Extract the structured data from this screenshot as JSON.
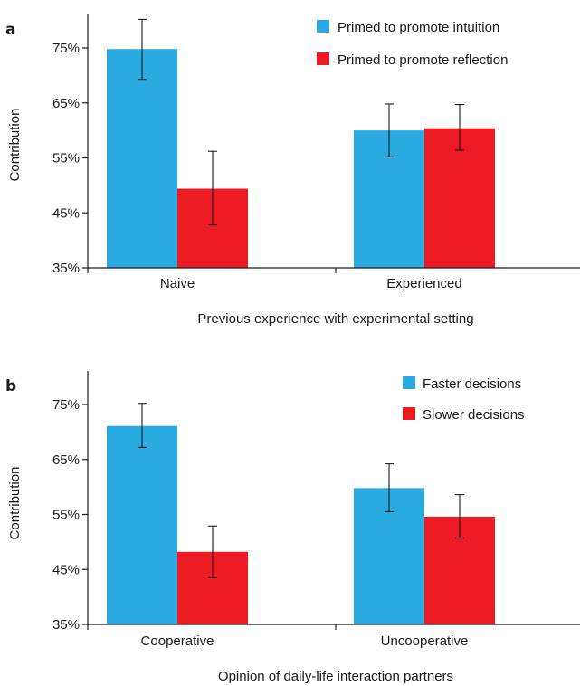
{
  "colors": {
    "intuition_fast": "#29abe2",
    "reflection_slow": "#ed1c24",
    "axis": "#1a1a1a"
  },
  "chart_data": [
    {
      "panel": "a",
      "type": "bar",
      "categories": [
        "Naive",
        "Experienced"
      ],
      "xlabel": "Previous experience with experimental setting",
      "ylabel": "Contribution",
      "ylim": [
        35,
        80
      ],
      "yticks": [
        35,
        45,
        55,
        65,
        75
      ],
      "ytick_labels": [
        "35%",
        "45%",
        "55%",
        "65%",
        "75%"
      ],
      "legend_position": "top-right",
      "series": [
        {
          "name": "Primed to promote intuition",
          "color": "#29abe2",
          "values": [
            74.8,
            60.0
          ],
          "err_low": [
            69.3,
            55.2
          ],
          "err_high": [
            80.2,
            64.8
          ]
        },
        {
          "name": "Primed to promote reflection",
          "color": "#ed1c24",
          "values": [
            49.4,
            60.4
          ],
          "err_low": [
            42.8,
            56.4
          ],
          "err_high": [
            56.2,
            64.7
          ]
        }
      ]
    },
    {
      "panel": "b",
      "type": "bar",
      "categories": [
        "Cooperative",
        "Uncooperative"
      ],
      "xlabel": "Opinion of daily-life interaction partners",
      "ylabel": "Contribution",
      "ylim": [
        35,
        80
      ],
      "yticks": [
        35,
        45,
        55,
        65,
        75
      ],
      "ytick_labels": [
        "35%",
        "45%",
        "55%",
        "65%",
        "75%"
      ],
      "legend_position": "top-right",
      "series": [
        {
          "name": "Faster decisions",
          "color": "#29abe2",
          "values": [
            71.1,
            59.8
          ],
          "err_low": [
            67.2,
            55.5
          ],
          "err_high": [
            75.2,
            64.2
          ]
        },
        {
          "name": "Slower decisions",
          "color": "#ed1c24",
          "values": [
            48.2,
            54.6
          ],
          "err_low": [
            43.5,
            50.7
          ],
          "err_high": [
            52.9,
            58.6
          ]
        }
      ]
    }
  ]
}
